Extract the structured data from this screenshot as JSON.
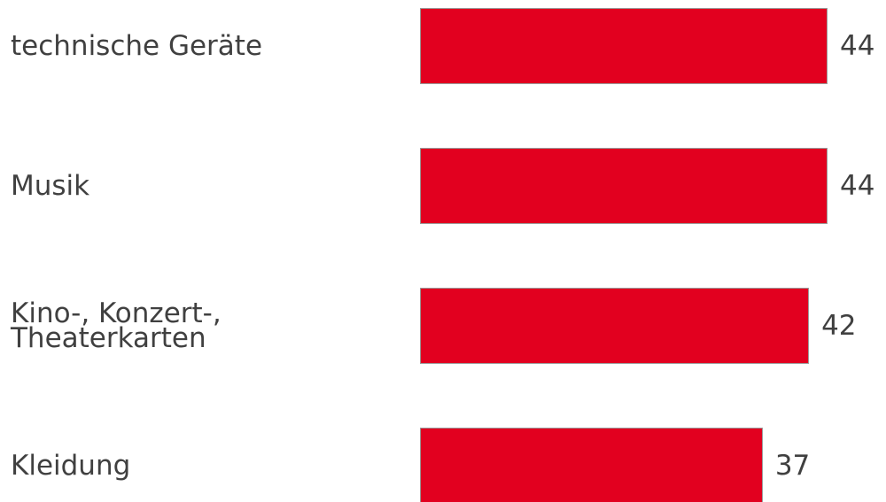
{
  "chart_data": {
    "type": "bar",
    "orientation": "horizontal",
    "categories": [
      "technische Geräte",
      "Musik",
      "Kino-, Konzert-, Theaterkarten",
      "Kleidung"
    ],
    "values": [
      44,
      44,
      42,
      37
    ],
    "color": "#e2001f"
  }
}
